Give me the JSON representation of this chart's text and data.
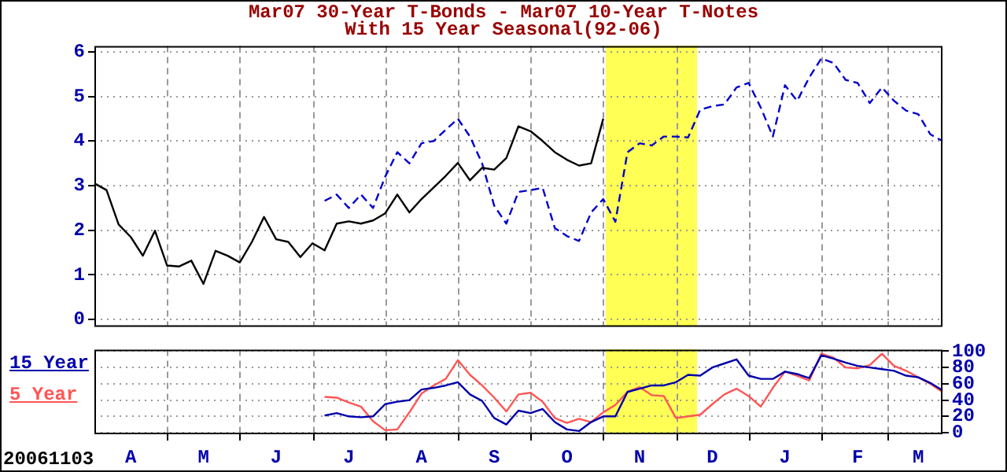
{
  "chart_data": [
    {
      "type": "line",
      "title": "Mar07 30-Year T-Bonds - Mar07 10-Year T-Notes",
      "subtitle": "With 15 Year Seasonal(92-06)",
      "categories": [
        null,
        null,
        null,
        null,
        null,
        null,
        null,
        null,
        null,
        null,
        null,
        null,
        null,
        null,
        null,
        null,
        null,
        null,
        null,
        null,
        null,
        null,
        null,
        null,
        null,
        null,
        null,
        null,
        null,
        null,
        null,
        null,
        null,
        null,
        null,
        null,
        null,
        null,
        null,
        null,
        null,
        null,
        null,
        null,
        null,
        null,
        null,
        null,
        null,
        null,
        null,
        null,
        null,
        null,
        null,
        null,
        null,
        null,
        null,
        null,
        null,
        null,
        null,
        null,
        null,
        null,
        null,
        null,
        null,
        null,
        null
      ],
      "ylim": [
        -0.13,
        6.13
      ],
      "yticks": [
        0,
        1,
        2,
        3,
        4,
        5,
        6
      ],
      "tick_labels": "y",
      "grid": true,
      "legend": false,
      "marker": "none",
      "series": [
        {
          "color": "#000000",
          "line_style": "solid",
          "values": [
            3.05,
            2.9,
            2.13,
            1.85,
            1.43,
            1.99,
            1.21,
            1.19,
            1.32,
            0.8,
            1.54,
            1.43,
            1.28,
            1.74,
            2.3,
            1.8,
            1.74,
            1.4,
            1.71,
            1.55,
            2.15,
            2.2,
            2.15,
            2.22,
            2.38,
            2.8,
            2.4,
            2.7,
            2.96,
            3.22,
            3.51,
            3.12,
            3.4,
            3.36,
            3.62,
            4.33,
            4.22,
            4.0,
            3.75,
            3.58,
            3.45,
            3.5,
            4.5,
            null,
            null,
            null,
            null,
            null,
            null,
            null,
            null,
            null,
            null,
            null,
            null,
            null,
            null,
            null,
            null,
            null,
            null,
            null,
            null,
            null,
            null,
            null,
            null,
            null,
            null,
            null,
            null
          ]
        },
        {
          "color": "#0000cc",
          "line_style": "dashed",
          "values": [
            null,
            null,
            null,
            null,
            null,
            null,
            null,
            null,
            null,
            null,
            null,
            null,
            null,
            null,
            null,
            null,
            null,
            null,
            null,
            2.66,
            2.8,
            2.5,
            2.8,
            2.5,
            3.2,
            3.75,
            3.5,
            3.95,
            4.0,
            4.25,
            4.5,
            4.1,
            3.5,
            2.55,
            2.15,
            2.86,
            2.9,
            2.95,
            2.05,
            1.87,
            1.76,
            2.4,
            2.7,
            2.19,
            3.75,
            3.95,
            3.9,
            4.1,
            4.1,
            4.08,
            4.7,
            4.78,
            4.82,
            5.2,
            5.3,
            4.75,
            4.1,
            5.25,
            4.9,
            5.42,
            5.85,
            5.75,
            5.37,
            5.3,
            4.85,
            5.2,
            4.9,
            4.68,
            4.6,
            4.15,
            4.0
          ]
        }
      ]
    },
    {
      "type": "line",
      "categories": [
        null,
        null,
        null,
        "A",
        null,
        null,
        null,
        null,
        null,
        "M",
        null,
        null,
        null,
        null,
        null,
        "J",
        null,
        null,
        null,
        null,
        null,
        "J",
        null,
        null,
        null,
        null,
        null,
        "A",
        null,
        null,
        null,
        null,
        null,
        "S",
        null,
        null,
        null,
        null,
        null,
        "O",
        null,
        null,
        null,
        null,
        null,
        "N",
        null,
        null,
        null,
        null,
        null,
        "D",
        null,
        null,
        null,
        null,
        null,
        "J",
        null,
        null,
        null,
        null,
        null,
        "F",
        null,
        null,
        null,
        null,
        "M",
        null,
        null
      ],
      "y2lim": [
        0,
        102
      ],
      "y2ticks": [
        0,
        20,
        40,
        60,
        80,
        100
      ],
      "grid": true,
      "legend": "left",
      "marker": "none",
      "annotations": [
        "20061103"
      ],
      "series": [
        {
          "name": "15 Year",
          "color": "#0000aa",
          "axis": "y2",
          "values": [
            null,
            null,
            null,
            null,
            null,
            null,
            null,
            null,
            null,
            null,
            null,
            null,
            null,
            null,
            null,
            null,
            null,
            null,
            null,
            21,
            24,
            20,
            19,
            20,
            35,
            38,
            40,
            53,
            55,
            58,
            62,
            47,
            39,
            18,
            10,
            27,
            24,
            29,
            13,
            4,
            2,
            13,
            20,
            20,
            50,
            54,
            58,
            58,
            62,
            71,
            70,
            80,
            85,
            90,
            70,
            66,
            66,
            75,
            72,
            67,
            95,
            91,
            86,
            82,
            80,
            78,
            76,
            70,
            68,
            61,
            52
          ]
        },
        {
          "name": "5 Year",
          "color": "#ff5555",
          "axis": "y2",
          "values": [
            null,
            null,
            null,
            null,
            null,
            null,
            null,
            null,
            null,
            null,
            null,
            null,
            null,
            null,
            null,
            null,
            null,
            null,
            null,
            44,
            43,
            37,
            32,
            14,
            3,
            4,
            25,
            48,
            58,
            66,
            89,
            71,
            58,
            43,
            26,
            47,
            49,
            38,
            18,
            12,
            17,
            13,
            25,
            34,
            50,
            56,
            46,
            45,
            18,
            20,
            22,
            35,
            47,
            54,
            45,
            32,
            55,
            75,
            70,
            64,
            97,
            92,
            80,
            79,
            83,
            97,
            82,
            76,
            68,
            60,
            50
          ]
        }
      ]
    }
  ]
}
